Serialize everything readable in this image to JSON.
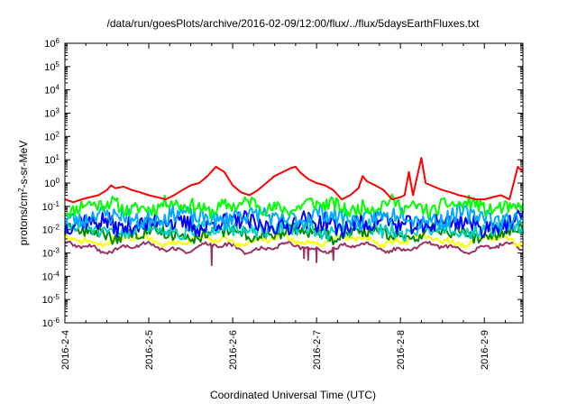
{
  "chart_data": {
    "type": "line",
    "title": "/data/run/goesPlots/archive/2016-02-09/12:00/flux/../flux/5daysEarthFluxes.txt",
    "xlabel": "Coordinated Universal Time (UTC)",
    "ylabel": "protons/cm²-s-sr-MeV",
    "yscale": "log",
    "ylim": [
      1e-06,
      1000000.0
    ],
    "xlim": [
      0,
      5.46
    ],
    "x_ticks": [
      {
        "x": 0,
        "label": "2016-2-4"
      },
      {
        "x": 1,
        "label": "2016-2-5"
      },
      {
        "x": 2,
        "label": "2016-2-6"
      },
      {
        "x": 3,
        "label": "2016-2-7"
      },
      {
        "x": 4,
        "label": "2016-2-8"
      },
      {
        "x": 5,
        "label": "2016-2-9"
      }
    ],
    "y_ticks": [
      {
        "exp": -6,
        "label": "10",
        "sup": "-6"
      },
      {
        "exp": -5,
        "label": "10",
        "sup": "-5"
      },
      {
        "exp": -4,
        "label": "10",
        "sup": "-4"
      },
      {
        "exp": -3,
        "label": "10",
        "sup": "-3"
      },
      {
        "exp": -2,
        "label": "10",
        "sup": "-2"
      },
      {
        "exp": -1,
        "label": "10",
        "sup": "-1"
      },
      {
        "exp": 0,
        "label": "10",
        "sup": "0"
      },
      {
        "exp": 1,
        "label": "10",
        "sup": "1"
      },
      {
        "exp": 2,
        "label": "10",
        "sup": "2"
      },
      {
        "exp": 3,
        "label": "10",
        "sup": "3"
      },
      {
        "exp": 4,
        "label": "10",
        "sup": "4"
      },
      {
        "exp": 5,
        "label": "10",
        "sup": "5"
      },
      {
        "exp": 6,
        "label": "10",
        "sup": "6"
      }
    ],
    "grid": false,
    "legend": "none",
    "series": [
      {
        "color": "#ff0000",
        "x": [
          0,
          0.1,
          0.2,
          0.3,
          0.4,
          0.5,
          0.55,
          0.6,
          0.7,
          0.8,
          0.9,
          1.0,
          1.1,
          1.2,
          1.3,
          1.4,
          1.5,
          1.6,
          1.7,
          1.8,
          1.9,
          2.0,
          2.1,
          2.2,
          2.3,
          2.4,
          2.5,
          2.6,
          2.7,
          2.75,
          2.8,
          2.9,
          3.0,
          3.1,
          3.2,
          3.3,
          3.4,
          3.5,
          3.55,
          3.6,
          3.7,
          3.8,
          3.9,
          4.0,
          4.05,
          4.1,
          4.15,
          4.2,
          4.25,
          4.3,
          4.4,
          4.5,
          4.6,
          4.7,
          4.8,
          4.9,
          5.0,
          5.1,
          5.2,
          5.3,
          5.4,
          5.46
        ],
        "y": [
          0.2,
          0.15,
          0.2,
          0.25,
          0.3,
          0.5,
          0.8,
          0.6,
          0.7,
          0.5,
          0.4,
          0.3,
          0.25,
          0.2,
          0.3,
          0.5,
          0.8,
          1.0,
          2.0,
          5.0,
          3.0,
          0.8,
          0.4,
          0.3,
          0.5,
          1.0,
          2.0,
          3.0,
          4.5,
          5.0,
          3.0,
          1.5,
          1.0,
          0.8,
          0.5,
          0.2,
          0.3,
          0.6,
          2.0,
          1.2,
          0.8,
          0.5,
          0.2,
          0.25,
          0.3,
          3.0,
          0.3,
          2.0,
          12.0,
          1.0,
          0.7,
          0.5,
          0.4,
          0.3,
          0.25,
          0.2,
          0.2,
          0.25,
          0.3,
          0.2,
          5.0,
          3.0
        ]
      },
      {
        "color": "#00ff00",
        "base": 0.1,
        "jitter": 0.6,
        "seed": 11
      },
      {
        "color": "#00aaff",
        "base": 0.035,
        "jitter": 0.75,
        "seed": 23
      },
      {
        "color": "#0000ff",
        "base": 0.018,
        "jitter": 0.8,
        "seed": 37
      },
      {
        "color": "#00d0c0",
        "base": 0.01,
        "jitter": 0.6,
        "seed": 51
      },
      {
        "color": "#008800",
        "base": 0.007,
        "jitter": 0.5,
        "seed": 63
      },
      {
        "color": "#ffff00",
        "base": 0.0035,
        "jitter": 0.25,
        "seed": 71
      },
      {
        "color": "#993366",
        "base": 0.0017,
        "jitter": 0.15,
        "seed": 89,
        "dips": [
          [
            1.75,
            0.0003
          ],
          [
            2.85,
            0.0006
          ],
          [
            2.9,
            0.0005
          ],
          [
            3.0,
            0.0004
          ],
          [
            3.2,
            0.0005
          ]
        ]
      }
    ]
  }
}
